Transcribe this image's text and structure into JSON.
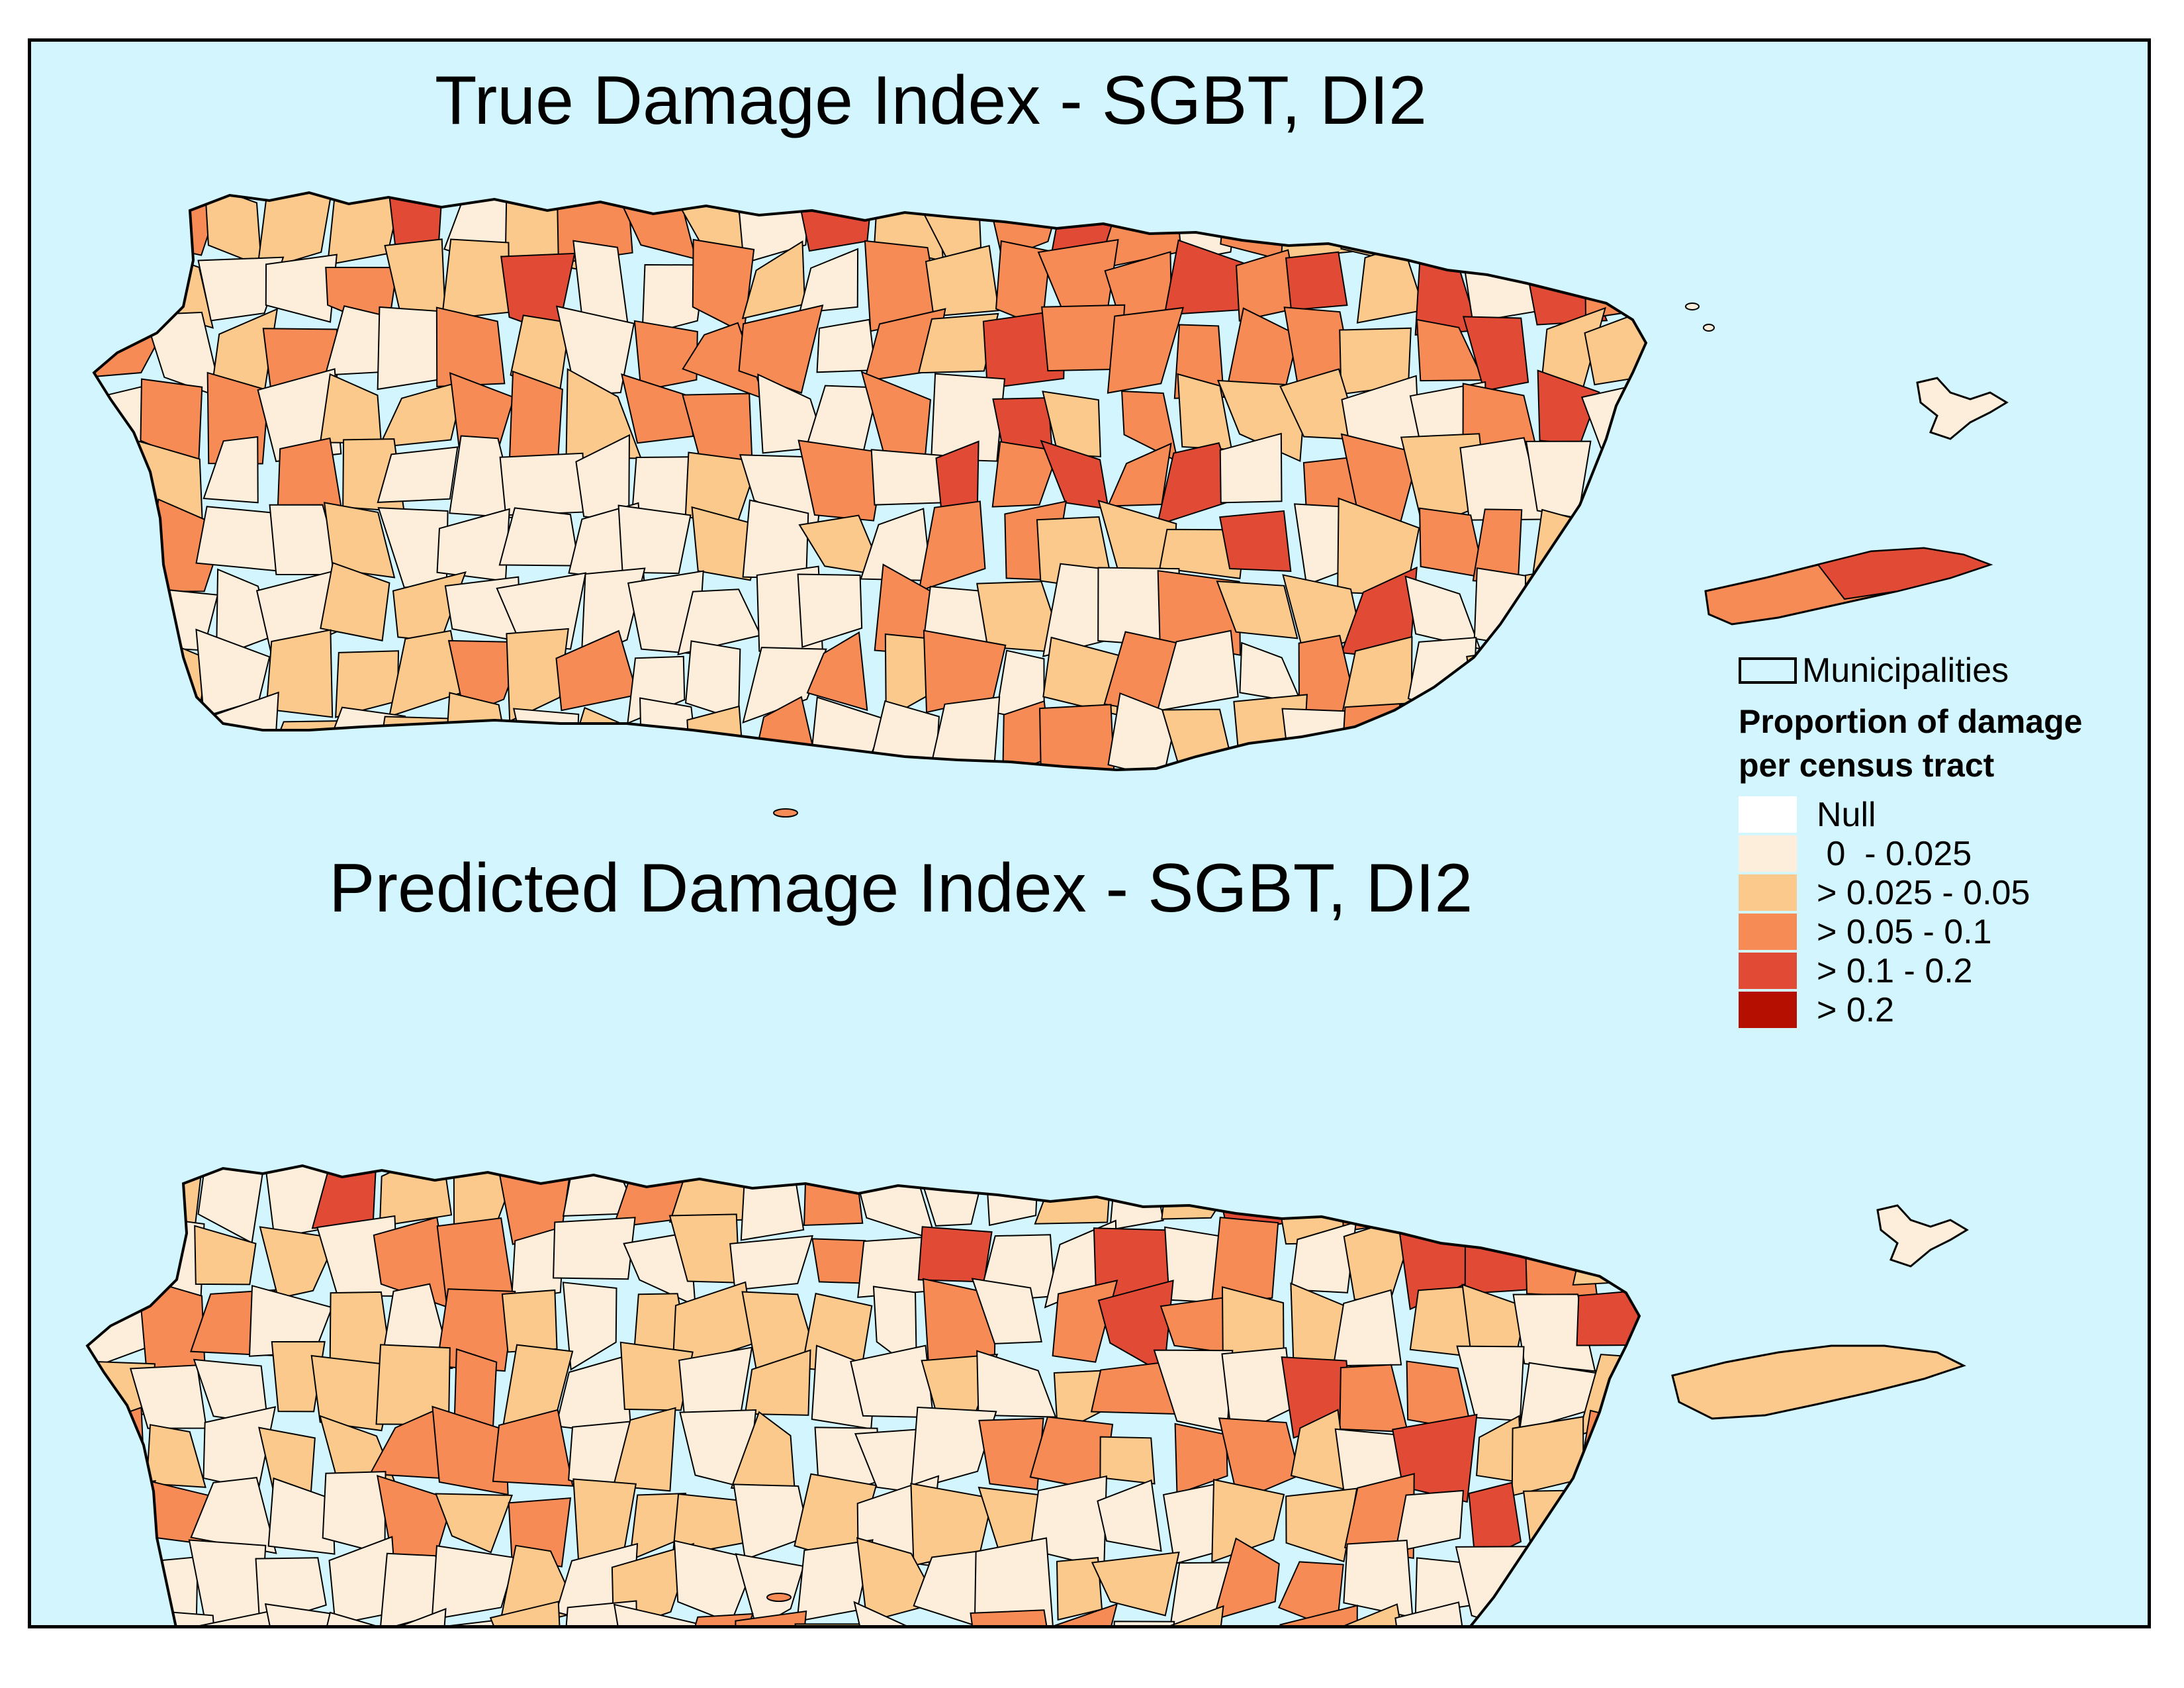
{
  "maps": [
    {
      "title": "True Damage Index - SGBT, DI2"
    },
    {
      "title": "Predicted Damage Index - SGBT, DI2"
    }
  ],
  "legend": {
    "boundary_label": "Municipalities",
    "title_line1": "Proportion of damage",
    "title_line2": "per census tract",
    "classes": [
      {
        "label": "Null",
        "color": "#ffffff"
      },
      {
        "label": " 0  - 0.025",
        "color": "#fdeedb"
      },
      {
        "label": "> 0.025 - 0.05",
        "color": "#fbc98b"
      },
      {
        "label": "> 0.05 - 0.1",
        "color": "#f68b55"
      },
      {
        "label": "> 0.1 - 0.2",
        "color": "#e14b35"
      },
      {
        "label": "> 0.2",
        "color": "#b50f02"
      }
    ]
  },
  "colors": {
    "ocean": "#d3f5fd",
    "border": "#000000"
  }
}
